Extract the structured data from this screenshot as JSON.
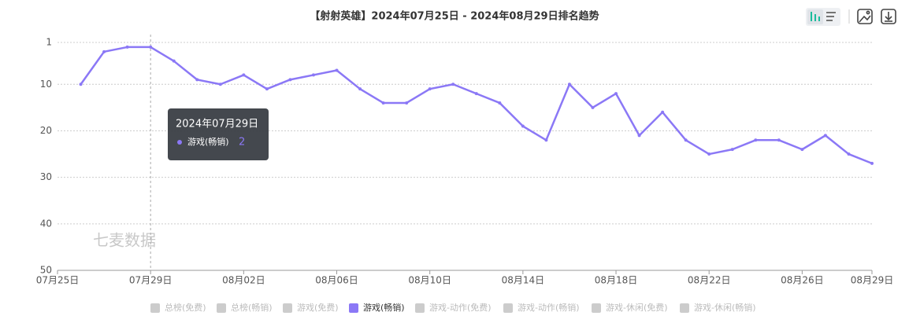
{
  "chart_data": {
    "type": "line",
    "title": "【射射英雄】2024年07月25日 - 2024年08月29日排名趋势",
    "categories": [
      "07月25日",
      null,
      null,
      null,
      "07月29日",
      null,
      null,
      null,
      "08月02日",
      null,
      null,
      null,
      "08月06日",
      null,
      null,
      null,
      "08月10日",
      null,
      null,
      null,
      "08月14日",
      null,
      null,
      null,
      "08月18日",
      null,
      null,
      null,
      "08月22日",
      null,
      null,
      null,
      "08月26日",
      null,
      null,
      "08月29日"
    ],
    "series": [
      {
        "name": "游戏(畅销)",
        "color": "#8b78f6",
        "values": [
          null,
          10,
          3,
          2,
          2,
          5,
          9,
          10,
          8,
          11,
          9,
          8,
          7,
          11,
          14,
          14,
          11,
          10,
          12,
          14,
          19,
          22,
          10,
          15,
          12,
          21,
          16,
          22,
          25,
          24,
          22,
          22,
          24,
          21,
          25,
          27
        ]
      }
    ],
    "ylim": [
      1,
      50
    ],
    "yticks": [
      1,
      10,
      20,
      30,
      40,
      50
    ],
    "y_inverted": true,
    "grid": true,
    "legend": {
      "position": "bottom",
      "items": [
        {
          "name": "总榜(免费)",
          "active": false
        },
        {
          "name": "总榜(畅销)",
          "active": false
        },
        {
          "name": "游戏(免费)",
          "active": false
        },
        {
          "name": "游戏(畅销)",
          "active": true
        },
        {
          "name": "游戏-动作(免费)",
          "active": false
        },
        {
          "name": "游戏-动作(畅销)",
          "active": false
        },
        {
          "name": "游戏-休闲(免费)",
          "active": false
        },
        {
          "name": "游戏-休闲(畅销)",
          "active": false
        }
      ]
    },
    "tooltip": {
      "title": "2024年07月29日"
    },
    "watermark": "七麦数据"
  }
}
